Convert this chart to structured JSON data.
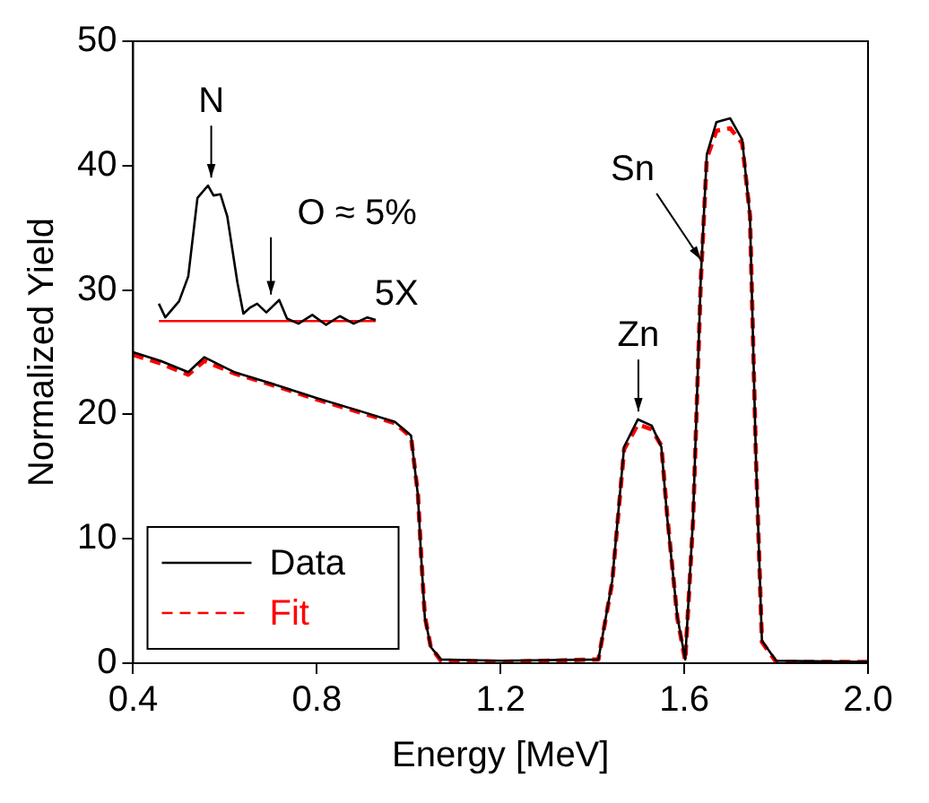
{
  "chart_data": {
    "type": "line",
    "xlabel": "Energy [MeV]",
    "ylabel": "Normalized Yield",
    "xlim": [
      0.4,
      2.0
    ],
    "xticks": [
      0.4,
      0.8,
      1.2,
      1.6,
      {
        "value": 2,
        "label": "2.0"
      }
    ],
    "ylim": [
      0,
      50
    ],
    "yticks": [
      0,
      10,
      20,
      30,
      40,
      50
    ],
    "grid": false,
    "legend": "bottom left",
    "marker": "none",
    "series": [
      {
        "name": "Data",
        "color": "#000000",
        "line_style": "solid",
        "x": [
          0.4,
          0.46,
          0.52,
          0.555,
          0.62,
          0.7,
          0.8,
          0.9,
          0.97,
          1.005,
          1.02,
          1.027,
          1.035,
          1.048,
          1.07,
          1.2,
          1.413,
          1.443,
          1.469,
          1.499,
          1.529,
          1.55,
          1.563,
          1.585,
          1.602,
          1.619,
          1.636,
          1.649,
          1.67,
          1.7,
          1.726,
          1.743,
          1.756,
          1.769,
          1.8,
          2.0
        ],
        "values": [
          25.0,
          24.3,
          23.4,
          24.6,
          23.4,
          22.5,
          21.3,
          20.2,
          19.4,
          18.3,
          13.5,
          8.6,
          3.7,
          1.3,
          0.3,
          0.2,
          0.3,
          6.6,
          17.4,
          19.6,
          19.1,
          17.4,
          11.6,
          3.7,
          0.3,
          11.6,
          31.0,
          40.9,
          43.5,
          43.8,
          42.1,
          35.9,
          16.4,
          1.8,
          0.2,
          0.1
        ]
      },
      {
        "name": "Fit",
        "color": "#ff0000",
        "line_style": "dashed",
        "x": [
          0.4,
          0.46,
          0.52,
          0.555,
          0.62,
          0.7,
          0.8,
          0.9,
          0.97,
          1.005,
          1.02,
          1.027,
          1.035,
          1.048,
          1.07,
          1.2,
          1.413,
          1.443,
          1.469,
          1.499,
          1.529,
          1.55,
          1.563,
          1.585,
          1.602,
          1.619,
          1.636,
          1.649,
          1.67,
          1.7,
          1.726,
          1.743,
          1.756,
          1.769,
          1.8,
          2.0
        ],
        "values": [
          24.8,
          24.1,
          23.2,
          24.3,
          23.3,
          22.4,
          21.2,
          20.1,
          19.3,
          18.2,
          13.6,
          8.7,
          3.8,
          1.3,
          0.2,
          0.1,
          0.3,
          6.5,
          17.2,
          19.2,
          18.8,
          17.5,
          11.8,
          3.6,
          0.2,
          11.4,
          30.8,
          40.6,
          42.8,
          43.0,
          41.8,
          36.0,
          16.5,
          1.7,
          0.1,
          0.1
        ]
      },
      {
        "color": "#000000",
        "line_style": "solid",
        "x": [
          0.456,
          0.47,
          0.5,
          0.52,
          0.54,
          0.563,
          0.575,
          0.59,
          0.605,
          0.627,
          0.64,
          0.655,
          0.67,
          0.69,
          0.718,
          0.735,
          0.76,
          0.79,
          0.82,
          0.85,
          0.88,
          0.91,
          0.928
        ],
        "values": [
          28.9,
          27.8,
          29.1,
          31.1,
          37.4,
          38.4,
          37.6,
          37.7,
          35.9,
          30.6,
          28.1,
          28.6,
          28.9,
          28.2,
          29.2,
          27.7,
          27.3,
          28.0,
          27.2,
          27.9,
          27.3,
          27.8,
          27.6
        ]
      },
      {
        "color": "#ff0000",
        "line_style": "solid",
        "x": [
          0.456,
          0.928
        ],
        "values": [
          27.5,
          27.5
        ]
      }
    ],
    "annotations": [
      {
        "text": "N",
        "x": 0.57,
        "y": 38.6
      },
      {
        "text": "O ≈ 5%",
        "x": 0.7,
        "y": 29.2
      },
      "5X",
      {
        "text": "Zn",
        "x": 1.5,
        "y": 19.8
      },
      {
        "text": "Sn",
        "x": 1.636,
        "y": 32.0
      }
    ]
  }
}
